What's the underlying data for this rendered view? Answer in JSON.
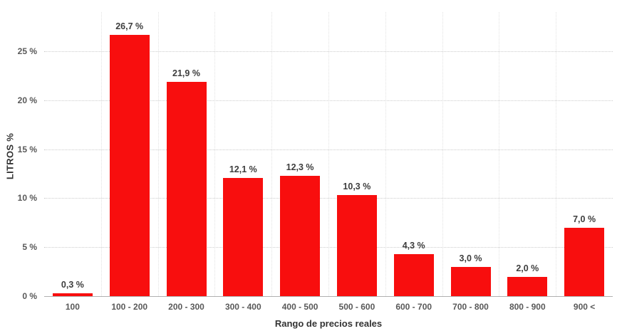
{
  "chart_data": {
    "type": "bar",
    "title": "",
    "xlabel": "Rango de precios reales",
    "ylabel": "LITROS %",
    "categories": [
      "100",
      "100 - 200",
      "200 - 300",
      "300 - 400",
      "400 - 500",
      "500 - 600",
      "600 - 700",
      "700 - 800",
      "800 - 900",
      "900 <"
    ],
    "values": [
      0.3,
      26.7,
      21.9,
      12.1,
      12.3,
      10.3,
      4.3,
      3.0,
      2.0,
      7.0
    ],
    "value_labels": [
      "0,3 %",
      "26,7 %",
      "21,9 %",
      "12,1 %",
      "12,3 %",
      "10,3 %",
      "4,3 %",
      "3,0 %",
      "2,0 %",
      "7,0 %"
    ],
    "y_ticks": [
      {
        "value": 0,
        "label": "0 %"
      },
      {
        "value": 5,
        "label": "5 %"
      },
      {
        "value": 10,
        "label": "10 %"
      },
      {
        "value": 15,
        "label": "15 %"
      },
      {
        "value": 20,
        "label": "20 %"
      },
      {
        "value": 25,
        "label": "25 %"
      }
    ],
    "ylim": [
      0,
      29
    ],
    "bar_color": "#f80e0e",
    "grid": true,
    "legend_position": "none"
  }
}
